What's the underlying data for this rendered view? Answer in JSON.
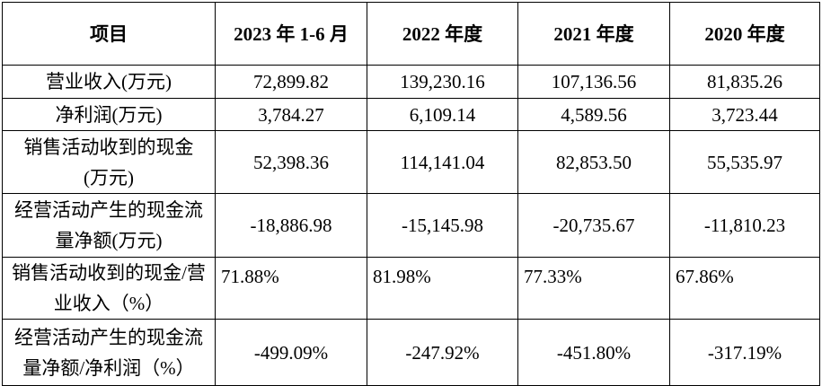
{
  "table": {
    "headers": [
      "项目",
      "2023 年 1-6 月",
      "2022 年度",
      "2021 年度",
      "2020 年度"
    ],
    "rows": [
      {
        "label": "营业收入(万元)",
        "values": [
          "72,899.82",
          "139,230.16",
          "107,136.56",
          "81,835.26"
        ]
      },
      {
        "label": "净利润(万元)",
        "values": [
          "3,784.27",
          "6,109.14",
          "4,589.56",
          "3,723.44"
        ]
      },
      {
        "label": "销售活动收到的现金(万元)",
        "values": [
          "52,398.36",
          "114,141.04",
          "82,853.50",
          "55,535.97"
        ]
      },
      {
        "label": "经营活动产生的现金流量净额(万元)",
        "values": [
          "-18,886.98",
          "-15,145.98",
          "-20,735.67",
          "-11,810.23"
        ]
      },
      {
        "label": "销售活动收到的现金/营业收入（%）",
        "values": [
          "71.88%",
          "81.98%",
          "77.33%",
          "67.86%"
        ]
      },
      {
        "label": "经营活动产生的现金流量净额/净利润（%）",
        "values": [
          "-499.09%",
          "-247.92%",
          "-451.80%",
          "-317.19%"
        ]
      }
    ]
  }
}
